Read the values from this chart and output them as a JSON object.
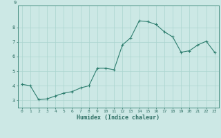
{
  "x": [
    0,
    1,
    2,
    3,
    4,
    5,
    6,
    7,
    8,
    9,
    10,
    11,
    12,
    13,
    14,
    15,
    16,
    17,
    18,
    19,
    20,
    21,
    22,
    23
  ],
  "y": [
    4.1,
    4.0,
    3.05,
    3.1,
    3.3,
    3.5,
    3.6,
    3.85,
    4.0,
    5.2,
    5.2,
    5.1,
    6.8,
    7.3,
    8.45,
    8.4,
    8.2,
    7.7,
    7.35,
    6.3,
    6.4,
    6.8,
    7.05,
    6.3
  ],
  "xlabel": "Humidex (Indice chaleur)",
  "ylim": [
    2.5,
    9.5
  ],
  "xlim": [
    -0.5,
    23.5
  ],
  "yticks": [
    3,
    4,
    5,
    6,
    7,
    8
  ],
  "xticks": [
    0,
    1,
    2,
    3,
    4,
    5,
    6,
    7,
    8,
    9,
    10,
    11,
    12,
    13,
    14,
    15,
    16,
    17,
    18,
    19,
    20,
    21,
    22,
    23
  ],
  "line_color": "#2d7d6e",
  "marker_color": "#2d7d6e",
  "bg_color": "#cce8e5",
  "grid_color": "#aad4cf"
}
